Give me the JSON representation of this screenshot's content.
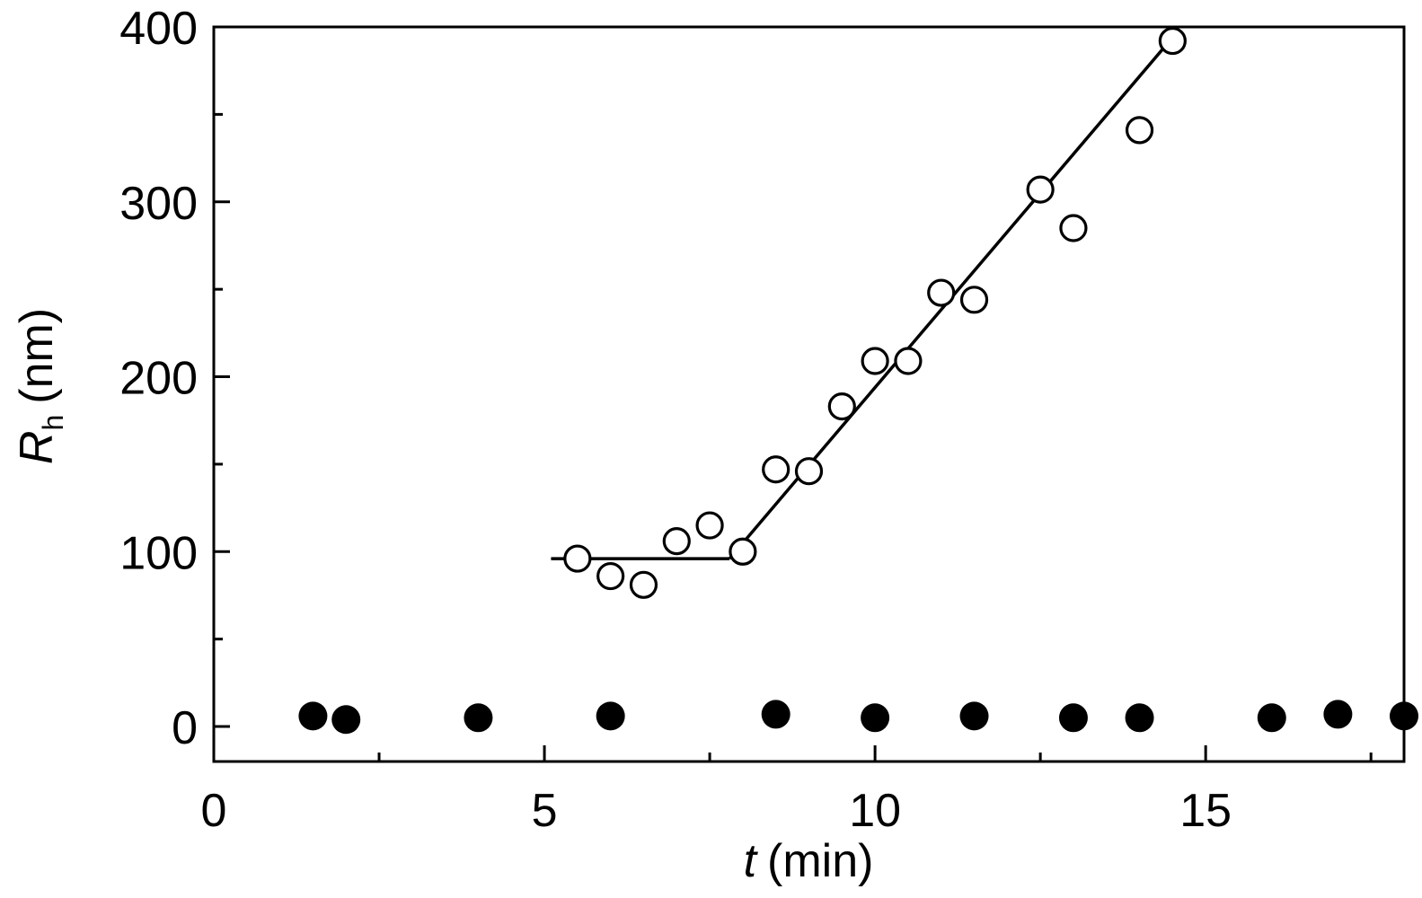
{
  "chart_data": {
    "type": "scatter",
    "xlabel": {
      "symbol": "t",
      "unit": "(min)"
    },
    "ylabel": {
      "symbol": "R",
      "subscript": "h",
      "unit": "(nm)"
    },
    "xlim": [
      0,
      18
    ],
    "ylim": [
      -20,
      400
    ],
    "x_ticks": [
      0,
      5,
      10,
      15
    ],
    "x_minor_ticks": [
      2.5,
      7.5,
      12.5,
      17.5
    ],
    "y_ticks": [
      0,
      100,
      200,
      300,
      400
    ],
    "y_minor_ticks": [
      50,
      150,
      250,
      350
    ],
    "grid": false,
    "series": [
      {
        "marker": "open-circle",
        "x": [
          5.5,
          6.0,
          6.5,
          7.0,
          7.5,
          8.0,
          8.5,
          9.0,
          9.5,
          10.0,
          10.5,
          11.0,
          11.5,
          12.5,
          13.0,
          14.0,
          14.5
        ],
        "y": [
          96,
          86,
          81,
          106,
          115,
          100,
          147,
          146,
          183,
          209,
          209,
          248,
          244,
          307,
          285,
          341,
          392
        ]
      },
      {
        "marker": "filled-circle",
        "x": [
          1.5,
          2.0,
          4.0,
          6.0,
          8.5,
          10.0,
          11.5,
          13.0,
          14.0,
          16.0,
          17.0,
          18.0
        ],
        "y": [
          6,
          4,
          5,
          6,
          7,
          5,
          6,
          5,
          5,
          5,
          7,
          6
        ]
      }
    ],
    "fit_lines": [
      {
        "x": [
          5.1,
          7.8
        ],
        "y": [
          96,
          96
        ]
      },
      {
        "x": [
          7.8,
          14.5
        ],
        "y": [
          96,
          394
        ]
      }
    ]
  }
}
